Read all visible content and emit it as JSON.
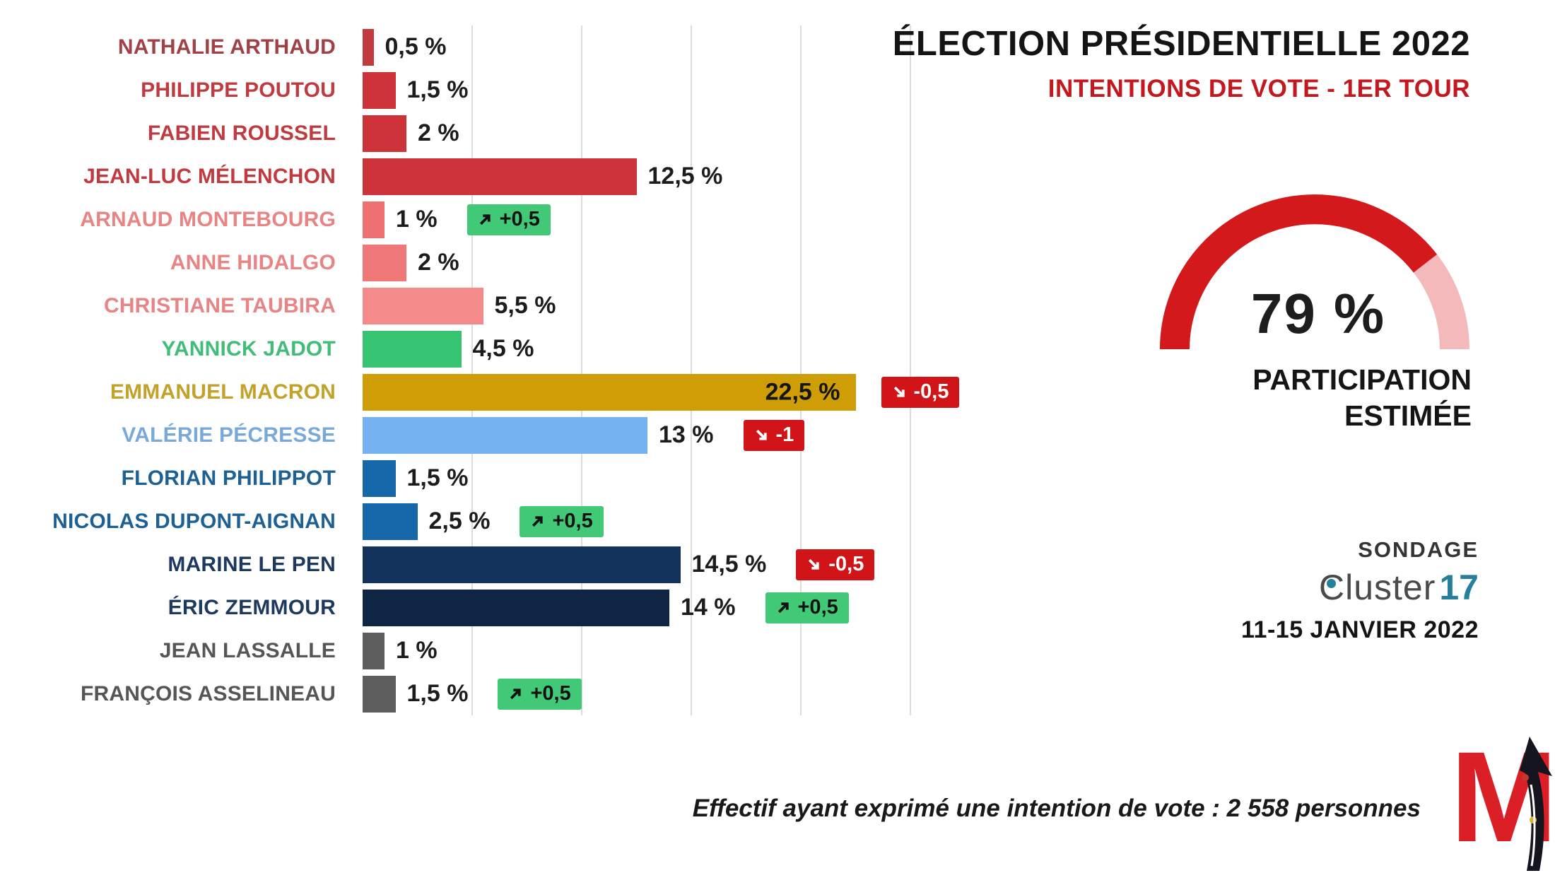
{
  "header": {
    "title": "ÉLECTION PRÉSIDENTIELLE 2022",
    "subtitle": "INTENTIONS DE VOTE - 1ER TOUR"
  },
  "gauge": {
    "percent": 79,
    "value_label": "79 %",
    "caption_line1": "PARTICIPATION",
    "caption_line2": "ESTIMÉE",
    "arc_color": "#d4191c",
    "track_color": "#f3b9bb"
  },
  "source": {
    "kicker": "SONDAGE",
    "brand_prefix": "Cluster",
    "brand_suffix": "17",
    "brand_teal": "#27809b",
    "brand_gray": "#4a4a4a",
    "date_range": "11-15 JANVIER 2022"
  },
  "footnote": "Effectif ayant exprimé une intention de vote : 2 558 personnes",
  "logo_m": "M",
  "chart_data": {
    "type": "bar",
    "orientation": "horizontal",
    "value_unit": "%",
    "xlim": [
      0,
      25
    ],
    "grid_step": 5,
    "grid": true,
    "categories": [
      "NATHALIE ARTHAUD",
      "PHILIPPE POUTOU",
      "FABIEN ROUSSEL",
      "JEAN-LUC MÉLENCHON",
      "ARNAUD MONTEBOURG",
      "ANNE HIDALGO",
      "CHRISTIANE TAUBIRA",
      "YANNICK JADOT",
      "EMMANUEL MACRON",
      "VALÉRIE PÉCRESSE",
      "FLORIAN PHILIPPOT",
      "NICOLAS DUPONT-AIGNAN",
      "MARINE LE PEN",
      "ÉRIC ZEMMOUR",
      "JEAN LASSALLE",
      "FRANÇOIS ASSELINEAU"
    ],
    "values": [
      0.5,
      1.5,
      2,
      12.5,
      1,
      2,
      5.5,
      4.5,
      22.5,
      13,
      1.5,
      2.5,
      14.5,
      14,
      1,
      1.5
    ],
    "badge_colors": {
      "up_bg": "#41c978",
      "up_text": "#121212",
      "down_bg": "#d11418",
      "down_text": "#ffffff"
    },
    "bars": [
      {
        "name": "NATHALIE ARTHAUD",
        "value": 0.5,
        "value_label": "0,5 %",
        "bar_color": "#c23a3e",
        "label_color": "#a04146",
        "value_inside": false,
        "change": null
      },
      {
        "name": "PHILIPPE POUTOU",
        "value": 1.5,
        "value_label": "1,5 %",
        "bar_color": "#cd3338",
        "label_color": "#c03a40",
        "value_inside": false,
        "change": null
      },
      {
        "name": "FABIEN ROUSSEL",
        "value": 2,
        "value_label": "2 %",
        "bar_color": "#cd3338",
        "label_color": "#c03a40",
        "value_inside": false,
        "change": null
      },
      {
        "name": "JEAN-LUC MÉLENCHON",
        "value": 12.5,
        "value_label": "12,5 %",
        "bar_color": "#cd3338",
        "label_color": "#c03a40",
        "value_inside": false,
        "change": null
      },
      {
        "name": "ARNAUD MONTEBOURG",
        "value": 1,
        "value_label": "1 %",
        "bar_color": "#ef7070",
        "label_color": "#e88484",
        "value_inside": false,
        "change": {
          "label": "+0,5",
          "direction": "up"
        }
      },
      {
        "name": "ANNE HIDALGO",
        "value": 2,
        "value_label": "2 %",
        "bar_color": "#f07878",
        "label_color": "#e88484",
        "value_inside": false,
        "change": null
      },
      {
        "name": "CHRISTIANE TAUBIRA",
        "value": 5.5,
        "value_label": "5,5 %",
        "bar_color": "#f58a8a",
        "label_color": "#e88484",
        "value_inside": false,
        "change": null
      },
      {
        "name": "YANNICK JADOT",
        "value": 4.5,
        "value_label": "4,5 %",
        "bar_color": "#36c472",
        "label_color": "#41bd78",
        "value_inside": false,
        "change": null
      },
      {
        "name": "EMMANUEL MACRON",
        "value": 22.5,
        "value_label": "22,5 %",
        "bar_color": "#cf9e06",
        "label_color": "#c3a22a",
        "value_inside": true,
        "change": {
          "label": "-0,5",
          "direction": "down"
        }
      },
      {
        "name": "VALÉRIE PÉCRESSE",
        "value": 13,
        "value_label": "13 %",
        "bar_color": "#75b2f2",
        "label_color": "#79a9d9",
        "value_inside": false,
        "change": {
          "label": "-1",
          "direction": "down"
        }
      },
      {
        "name": "FLORIAN PHILIPPOT",
        "value": 1.5,
        "value_label": "1,5 %",
        "bar_color": "#1568a9",
        "label_color": "#1c6094",
        "value_inside": false,
        "change": null
      },
      {
        "name": "NICOLAS DUPONT-AIGNAN",
        "value": 2.5,
        "value_label": "2,5 %",
        "bar_color": "#1568a9",
        "label_color": "#1c6094",
        "value_inside": false,
        "change": {
          "label": "+0,5",
          "direction": "up"
        }
      },
      {
        "name": "MARINE LE PEN",
        "value": 14.5,
        "value_label": "14,5 %",
        "bar_color": "#14335c",
        "label_color": "#1d3a5e",
        "value_inside": false,
        "change": {
          "label": "-0,5",
          "direction": "down"
        }
      },
      {
        "name": "ÉRIC ZEMMOUR",
        "value": 14,
        "value_label": "14 %",
        "bar_color": "#0e2543",
        "label_color": "#1d3a5e",
        "value_inside": false,
        "change": {
          "label": "+0,5",
          "direction": "up"
        }
      },
      {
        "name": "JEAN LASSALLE",
        "value": 1,
        "value_label": "1 %",
        "bar_color": "#5d5d5d",
        "label_color": "#565656",
        "value_inside": false,
        "change": null
      },
      {
        "name": "FRANÇOIS ASSELINEAU",
        "value": 1.5,
        "value_label": "1,5 %",
        "bar_color": "#5d5d5d",
        "label_color": "#565656",
        "value_inside": false,
        "change": {
          "label": "+0,5",
          "direction": "up"
        }
      }
    ]
  }
}
